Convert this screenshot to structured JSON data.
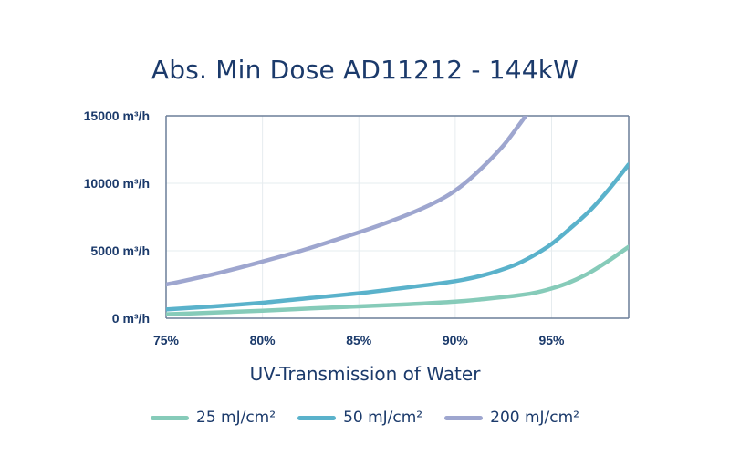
{
  "chart_data": {
    "type": "line",
    "title": "Abs. Min Dose AD11212 - 144kW",
    "xlabel": "UV-Transmission of Water",
    "ylabel": "",
    "x_ticks": [
      "75%",
      "80%",
      "85%",
      "90%",
      "95%"
    ],
    "y_ticks": [
      "0 m³/h",
      "5000 m³/h",
      "10000 m³/h",
      "15000 m³/h"
    ],
    "xlim": [
      75,
      99
    ],
    "ylim": [
      0,
      15000
    ],
    "grid": true,
    "legend_position": "bottom",
    "series": [
      {
        "name": "25 mJ/cm²",
        "color": "#86cbb9",
        "x": [
          75,
          77.5,
          80,
          82.5,
          85,
          87.5,
          90,
          91.5,
          93,
          94,
          95,
          96,
          97,
          98,
          99
        ],
        "y": [
          300,
          420,
          560,
          720,
          880,
          1030,
          1230,
          1420,
          1650,
          1850,
          2200,
          2700,
          3400,
          4300,
          5300
        ]
      },
      {
        "name": "50 mJ/cm²",
        "color": "#5ab2cb",
        "x": [
          75,
          77.5,
          80,
          82.5,
          85,
          87.5,
          90,
          91.5,
          93,
          94,
          95,
          96,
          97,
          98,
          99
        ],
        "y": [
          650,
          880,
          1150,
          1500,
          1850,
          2280,
          2750,
          3200,
          3900,
          4600,
          5500,
          6700,
          8000,
          9600,
          11400
        ]
      },
      {
        "name": "200 mJ/cm²",
        "color": "#9ea6cf",
        "x": [
          75,
          76.5,
          78,
          80,
          82,
          84,
          86,
          88,
          89.5,
          90.5,
          91.5,
          92.5,
          93.3,
          93.8
        ],
        "y": [
          2500,
          2950,
          3450,
          4200,
          5000,
          5900,
          6850,
          7950,
          9000,
          10000,
          11300,
          12800,
          14300,
          15300
        ]
      }
    ]
  }
}
